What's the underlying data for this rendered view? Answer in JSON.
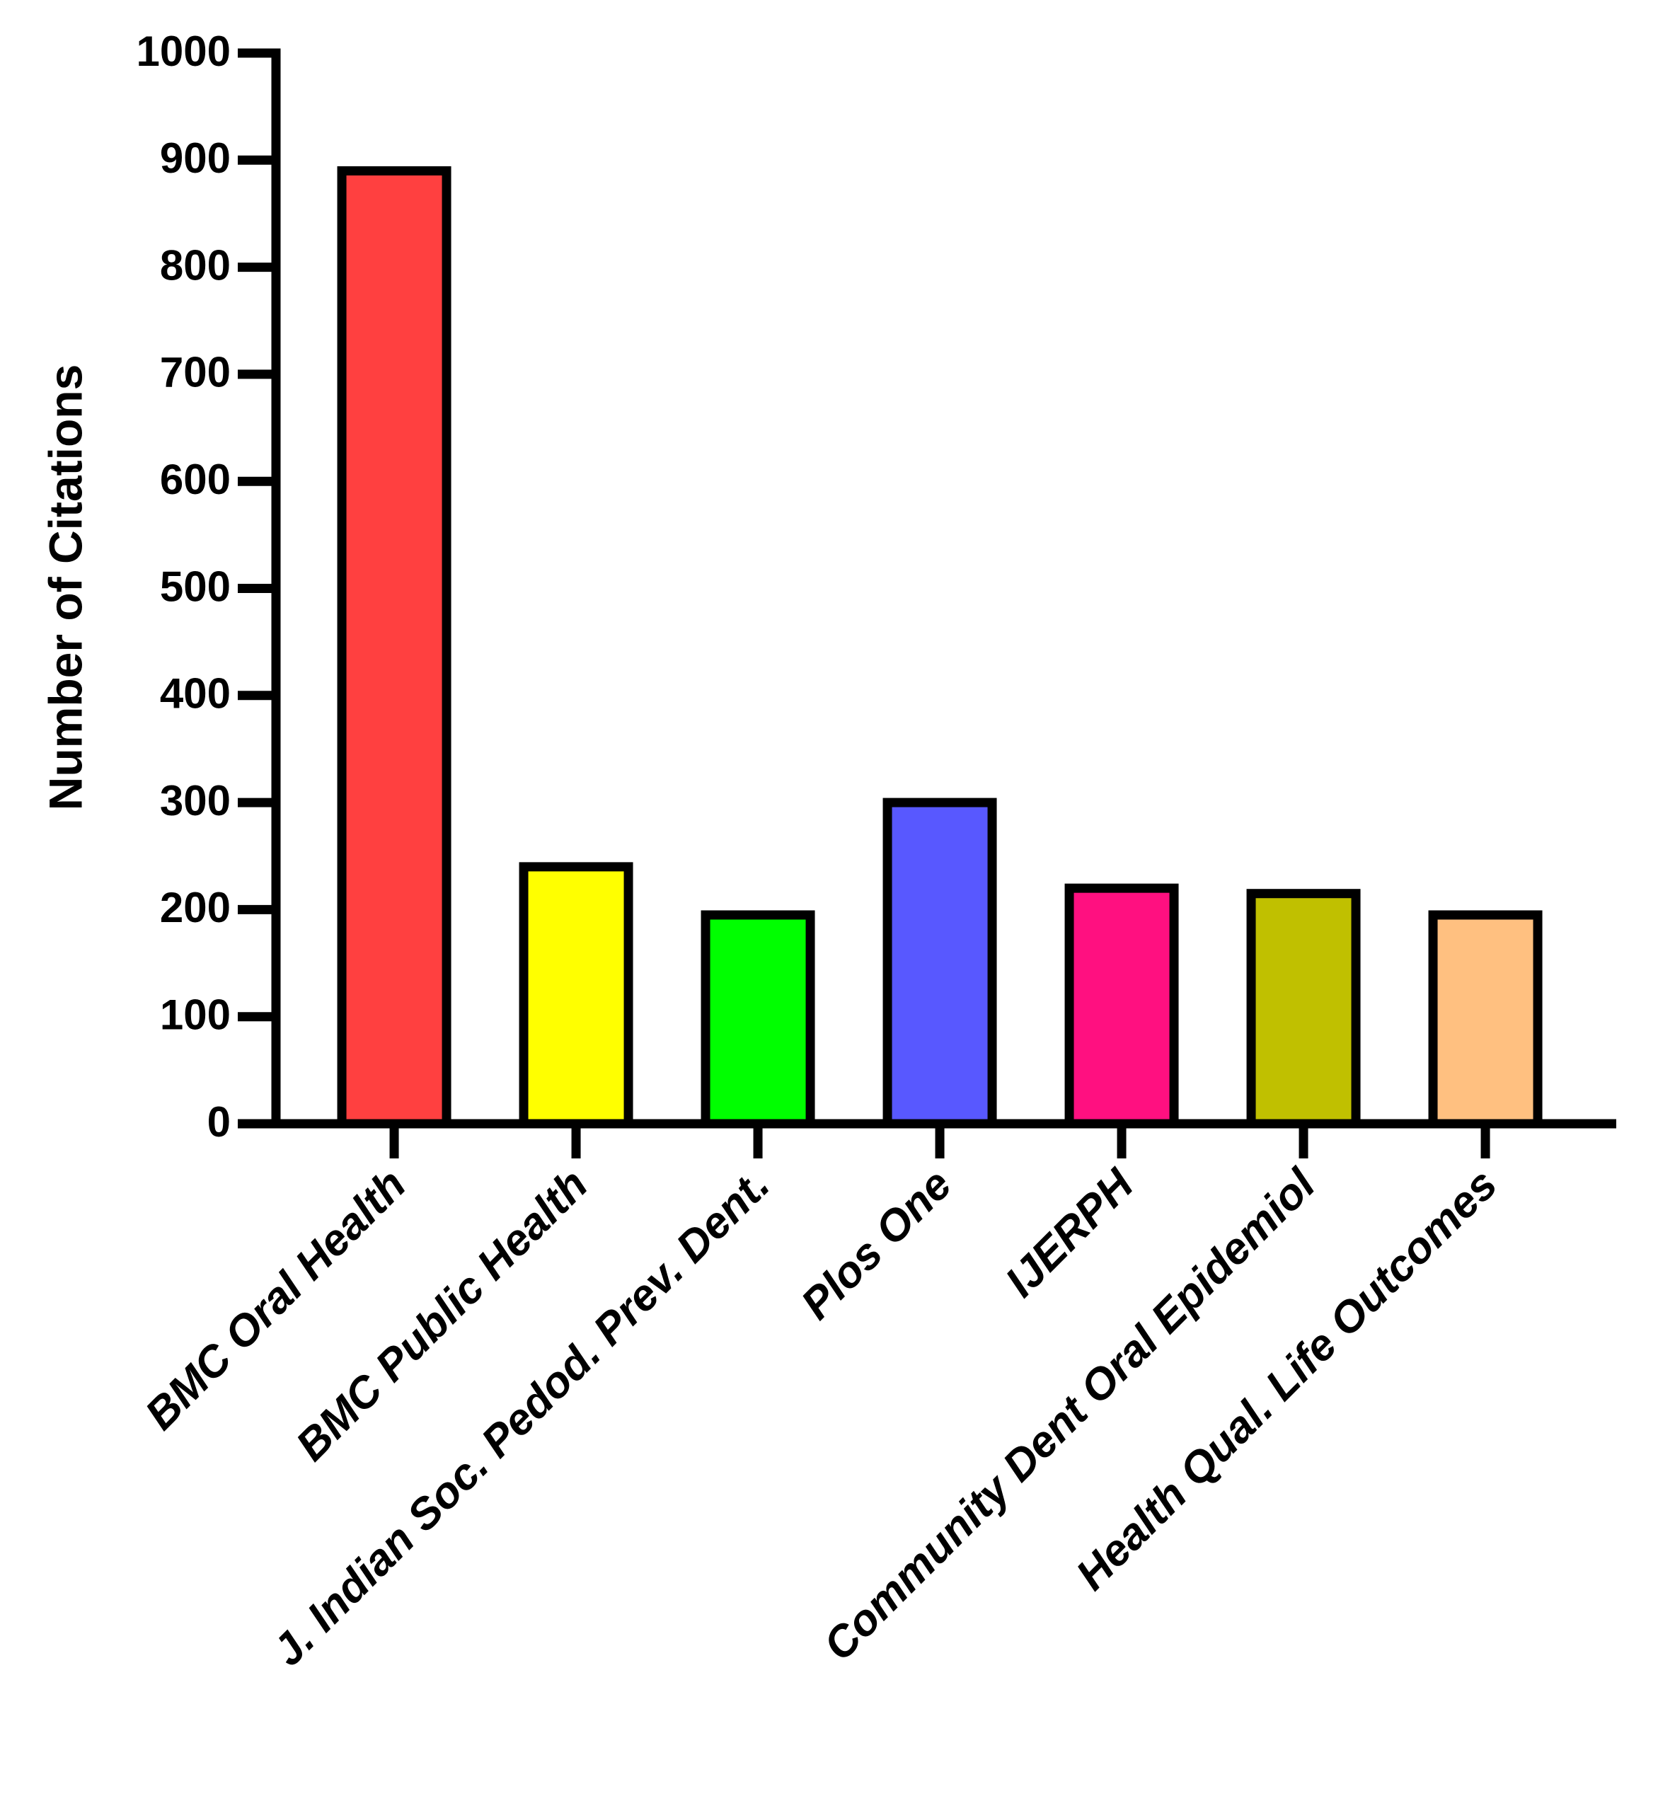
{
  "chart_data": {
    "type": "bar",
    "y_label": "Number of Citations",
    "categories": [
      "BMC Oral Health",
      "BMC Public Health",
      "J. Indian Soc. Pedod. Prev. Dent.",
      "Plos One",
      "IJERPH",
      "Community Dent Oral Epidemiol",
      "Health Qual. Life Outcomes"
    ],
    "values": [
      890,
      240,
      195,
      300,
      220,
      215,
      195
    ],
    "colors": [
      "#ff4040",
      "#ffff00",
      "#00ff00",
      "#5858ff",
      "#ff1080",
      "#c0c000",
      "#ffc080"
    ],
    "ylim": [
      0,
      1000
    ],
    "yticks": [
      0,
      100,
      200,
      300,
      400,
      500,
      600,
      700,
      800,
      900,
      1000
    ],
    "grid": false
  }
}
